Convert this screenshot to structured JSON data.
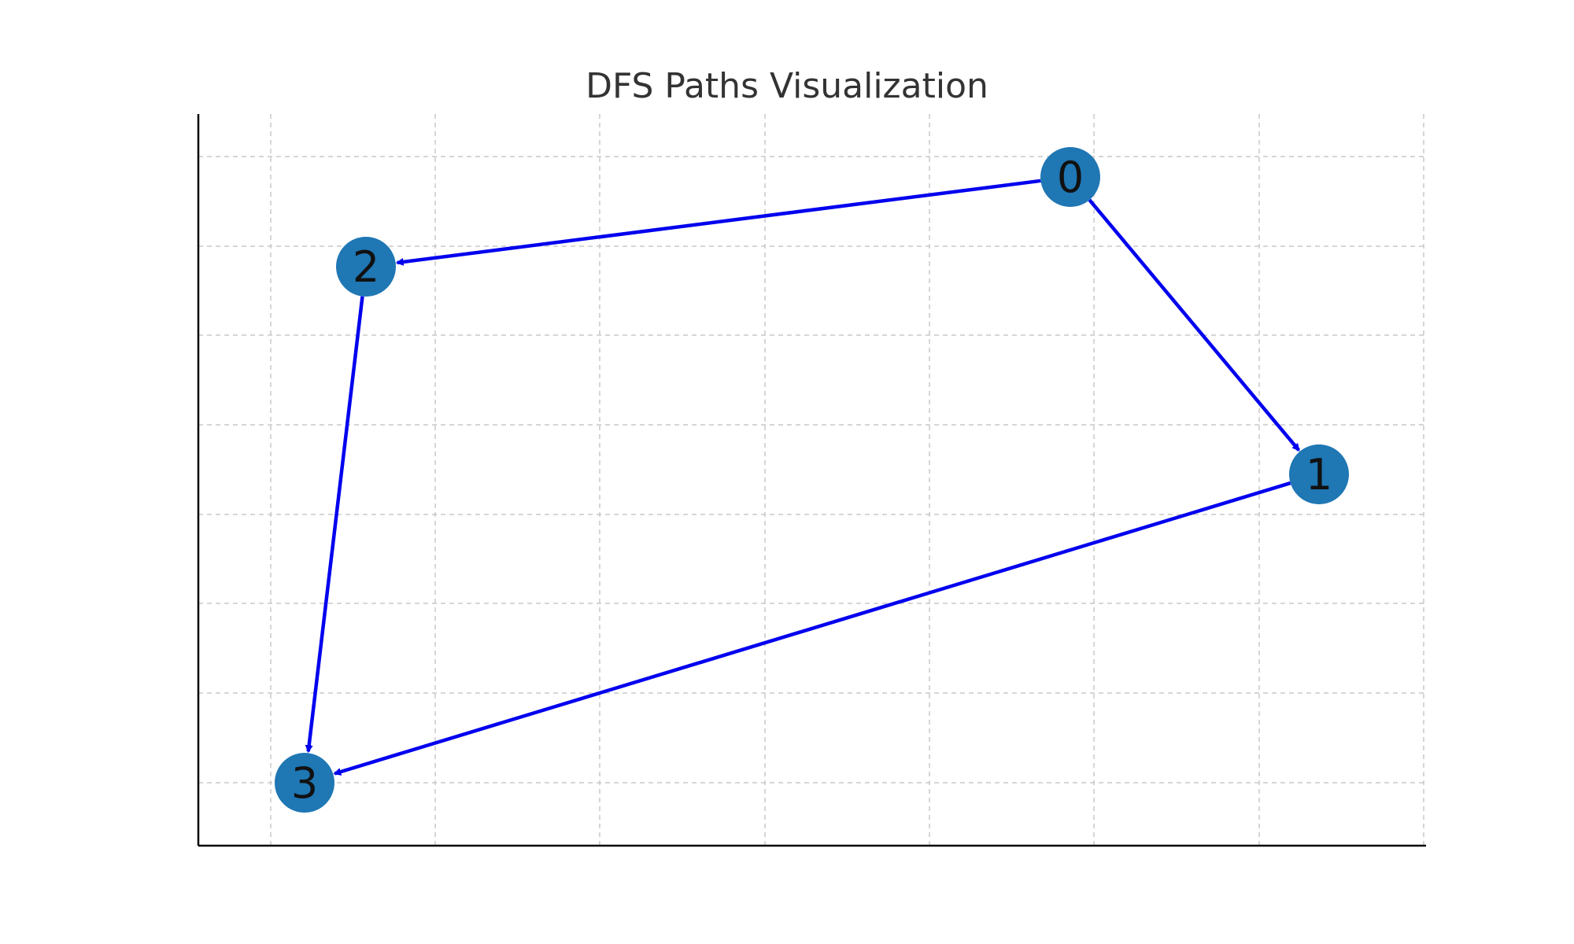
{
  "title": "DFS Paths Visualization",
  "colors": {
    "node": "#1f77b4",
    "edge": "#0000ee",
    "grid": "#c8c8c8",
    "axis": "#000000",
    "label": "#111111"
  },
  "nodes": [
    {
      "id": "0",
      "label": "0"
    },
    {
      "id": "1",
      "label": "1"
    },
    {
      "id": "2",
      "label": "2"
    },
    {
      "id": "3",
      "label": "3"
    }
  ],
  "edges": [
    {
      "from": "0",
      "to": "2"
    },
    {
      "from": "0",
      "to": "1"
    },
    {
      "from": "2",
      "to": "3"
    },
    {
      "from": "1",
      "to": "3"
    }
  ],
  "grid": true
}
